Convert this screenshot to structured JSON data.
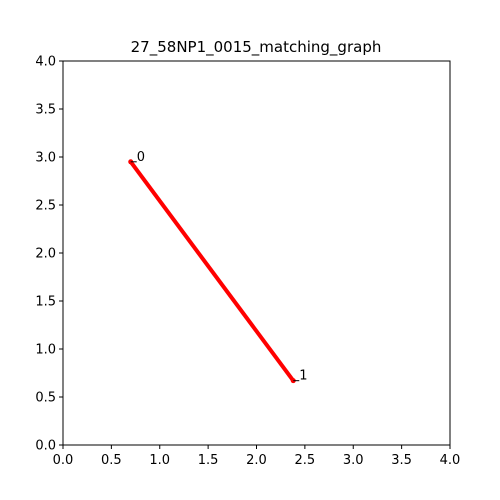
{
  "chart_data": {
    "type": "line",
    "title": "27_58NP1_0015_matching_graph",
    "xlabel": "",
    "ylabel": "",
    "xlim": [
      0.0,
      4.0
    ],
    "ylim": [
      0.0,
      4.0
    ],
    "x_ticks": [
      "0.0",
      "0.5",
      "1.0",
      "1.5",
      "2.0",
      "2.5",
      "3.0",
      "3.5",
      "4.0"
    ],
    "y_ticks": [
      "0.0",
      "0.5",
      "1.0",
      "1.5",
      "2.0",
      "2.5",
      "3.0",
      "3.5",
      "4.0"
    ],
    "grid": false,
    "nodes": [
      {
        "label": "0",
        "x": 0.7,
        "y": 2.95
      },
      {
        "label": "1",
        "x": 2.38,
        "y": 0.67
      }
    ],
    "edges": [
      {
        "from": 0,
        "to": 1,
        "color": "#ff0000"
      }
    ],
    "colors": {
      "edge": "#ff0000",
      "node": "#ff0000",
      "axis": "#000000"
    }
  }
}
